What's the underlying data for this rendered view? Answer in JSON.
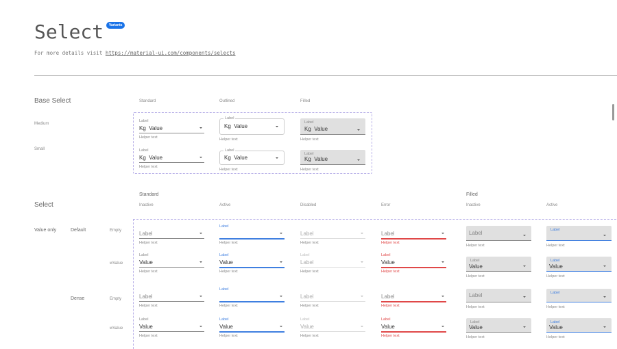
{
  "header": {
    "title": "Select",
    "badge": "Variants",
    "desc_prefix": "For more details visit ",
    "link": "https://material-ui.com/components/selects"
  },
  "base": {
    "title": "Base Select",
    "columns": [
      "Standard",
      "Outlined",
      "Filled"
    ],
    "rows": [
      "Medium",
      "Small"
    ],
    "field": {
      "label": "Label",
      "prefix": "Kg",
      "value": "Value",
      "helper": "Helper text"
    }
  },
  "select": {
    "title": "Select",
    "group_standard": "Standard",
    "group_filled": "Filled",
    "columns": [
      "Inactive",
      "Active",
      "Disabled",
      "Error",
      "Inactive",
      "Active"
    ],
    "category": "Value only",
    "sizes": [
      "Default",
      "Dense"
    ],
    "row_states": [
      "Empty",
      "wValue",
      "Empty",
      "wValue"
    ],
    "rows": [
      {
        "cells": [
          {
            "label": "Label",
            "value": "",
            "helper": "Helper text"
          },
          {
            "label": "Label",
            "value": "",
            "helper": "Helper text"
          },
          {
            "label": "Label",
            "value": "",
            "helper": "Helper text"
          },
          {
            "label": "Label",
            "value": "",
            "helper": "Helper text"
          },
          {
            "label": "Label",
            "value": "",
            "helper": "Helper text"
          },
          {
            "label": "Label",
            "value": "",
            "helper": "Helper text"
          }
        ]
      },
      {
        "cells": [
          {
            "label": "Label",
            "value": "Value",
            "helper": "Helper text"
          },
          {
            "label": "Label",
            "value": "Value",
            "helper": "Helper text"
          },
          {
            "label": "Label",
            "value": "Label",
            "helper": "Helper text"
          },
          {
            "label": "Label",
            "value": "Value",
            "helper": "Helper text"
          },
          {
            "label": "Label",
            "value": "Value",
            "helper": "Helper text"
          },
          {
            "label": "Label",
            "value": "Value",
            "helper": "Helper text"
          }
        ]
      },
      {
        "cells": [
          {
            "label": "Label",
            "value": "",
            "helper": "Helper text"
          },
          {
            "label": "Label",
            "value": "",
            "helper": "Helper text"
          },
          {
            "label": "Label",
            "value": "",
            "helper": "Helper text"
          },
          {
            "label": "Label",
            "value": "",
            "helper": "Helper text"
          },
          {
            "label": "Label",
            "value": "",
            "helper": "Helper text"
          },
          {
            "label": "Label",
            "value": "",
            "helper": "Helper text"
          }
        ]
      },
      {
        "cells": [
          {
            "label": "Label",
            "value": "Value",
            "helper": "Helper text"
          },
          {
            "label": "Label",
            "value": "Value",
            "helper": "Helper text"
          },
          {
            "label": "Label",
            "value": "Value",
            "helper": "Helper text"
          },
          {
            "label": "Label",
            "value": "Value",
            "helper": "Helper text"
          },
          {
            "label": "Label",
            "value": "Value",
            "helper": "Helper text"
          },
          {
            "label": "Label",
            "value": "Value",
            "helper": "Helper text"
          }
        ]
      }
    ]
  },
  "colors": {
    "accent": "#3f7fe0",
    "error": "#e04848",
    "fill": "#e0e0e0",
    "badge": "#1a73e8"
  }
}
